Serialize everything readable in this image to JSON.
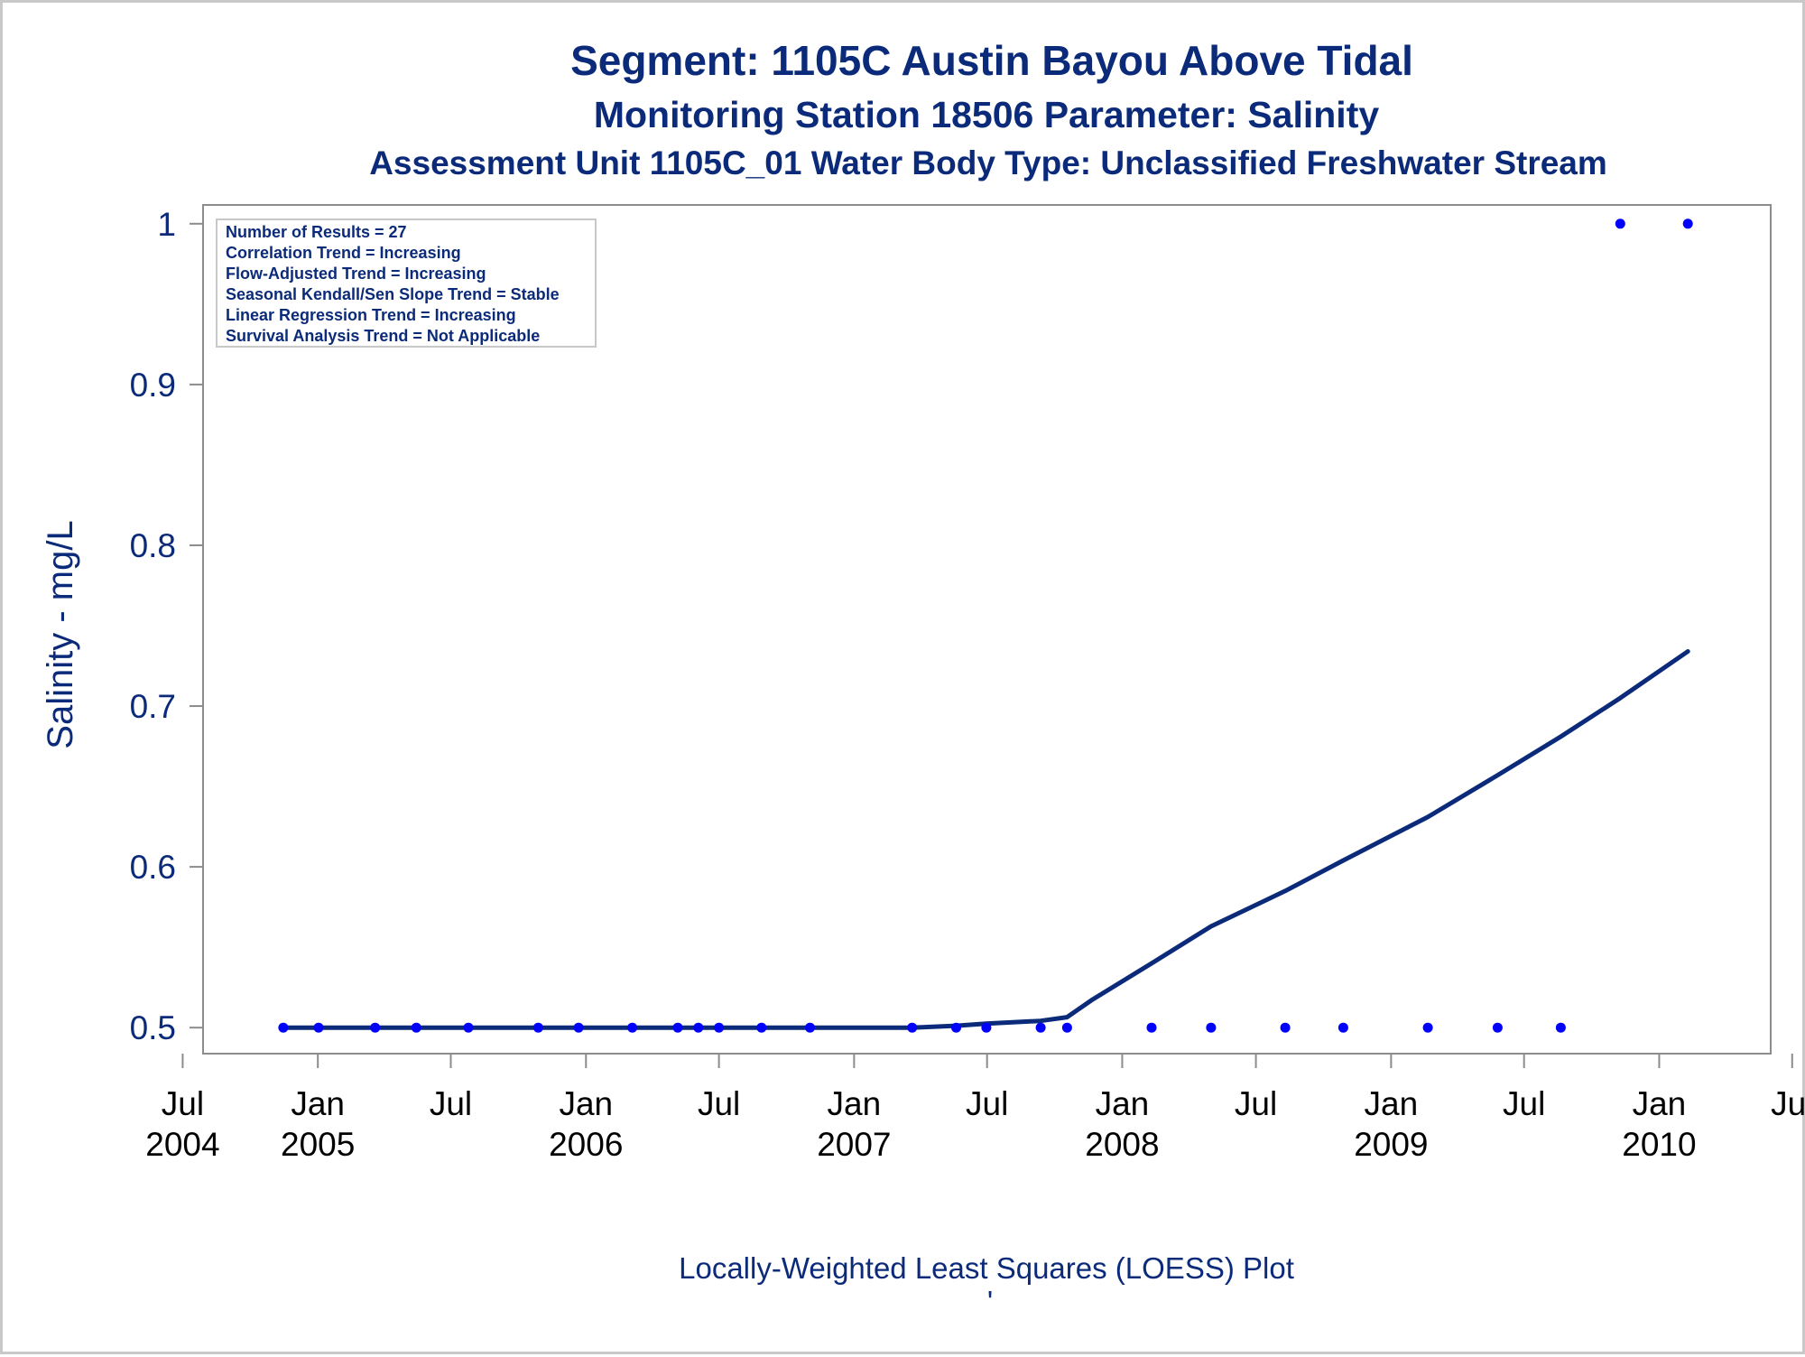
{
  "chart_data": {
    "type": "scatter",
    "title": "Segment: 1105C  Austin Bayou Above Tidal",
    "subtitle": "Monitoring Station 18506 Parameter: Salinity",
    "subtitle2": "Assessment Unit 1105C_01   Water Body Type: Unclassified Freshwater Stream",
    "xlabel": "Locally-Weighted Least Squares (LOESS) Plot",
    "ylabel": "Salinity - mg/L",
    "footnote_mark": "'",
    "xlim": [
      "2004-06-01",
      "2010-08-01"
    ],
    "ylim": [
      0.49,
      1.01
    ],
    "y_ticks": [
      {
        "value": 0.5,
        "label": "0.5"
      },
      {
        "value": 0.6,
        "label": "0.6"
      },
      {
        "value": 0.7,
        "label": "0.7"
      },
      {
        "value": 0.8,
        "label": "0.8"
      },
      {
        "value": 0.9,
        "label": "0.9"
      },
      {
        "value": 1.0,
        "label": "1"
      }
    ],
    "x_ticks": [
      {
        "date": "2004-07-01",
        "month": "Jul",
        "year": "2004"
      },
      {
        "date": "2005-01-01",
        "month": "Jan",
        "year": "2005"
      },
      {
        "date": "2005-07-01",
        "month": "Jul",
        "year": ""
      },
      {
        "date": "2006-01-01",
        "month": "Jan",
        "year": "2006"
      },
      {
        "date": "2006-07-01",
        "month": "Jul",
        "year": ""
      },
      {
        "date": "2007-01-01",
        "month": "Jan",
        "year": "2007"
      },
      {
        "date": "2007-07-01",
        "month": "Jul",
        "year": ""
      },
      {
        "date": "2008-01-01",
        "month": "Jan",
        "year": "2008"
      },
      {
        "date": "2008-07-01",
        "month": "Jul",
        "year": ""
      },
      {
        "date": "2009-01-01",
        "month": "Jan",
        "year": "2009"
      },
      {
        "date": "2009-07-01",
        "month": "Jul",
        "year": ""
      },
      {
        "date": "2010-01-01",
        "month": "Jan",
        "year": "2010"
      },
      {
        "date": "2010-07-01",
        "month": "Jul",
        "year": ""
      }
    ],
    "series": [
      {
        "type": "scatter",
        "points": [
          {
            "x": "2004-11-15",
            "y": 0.5
          },
          {
            "x": "2005-01-02",
            "y": 0.5
          },
          {
            "x": "2005-03-20",
            "y": 0.5
          },
          {
            "x": "2005-05-15",
            "y": 0.5
          },
          {
            "x": "2005-07-25",
            "y": 0.5
          },
          {
            "x": "2005-10-28",
            "y": 0.5
          },
          {
            "x": "2005-12-22",
            "y": 0.5
          },
          {
            "x": "2006-03-05",
            "y": 0.5
          },
          {
            "x": "2006-05-06",
            "y": 0.5
          },
          {
            "x": "2006-06-03",
            "y": 0.5
          },
          {
            "x": "2006-07-01",
            "y": 0.5
          },
          {
            "x": "2006-08-28",
            "y": 0.5
          },
          {
            "x": "2006-11-02",
            "y": 0.5
          },
          {
            "x": "2007-03-21",
            "y": 0.5
          },
          {
            "x": "2007-05-20",
            "y": 0.5
          },
          {
            "x": "2007-06-30",
            "y": 0.5
          },
          {
            "x": "2007-09-12",
            "y": 0.5
          },
          {
            "x": "2007-10-18",
            "y": 0.5
          },
          {
            "x": "2008-02-10",
            "y": 0.5
          },
          {
            "x": "2008-05-01",
            "y": 0.5
          },
          {
            "x": "2008-08-10",
            "y": 0.5
          },
          {
            "x": "2008-10-28",
            "y": 0.5
          },
          {
            "x": "2009-02-20",
            "y": 0.5
          },
          {
            "x": "2009-05-26",
            "y": 0.5
          },
          {
            "x": "2009-08-20",
            "y": 0.5
          },
          {
            "x": "2009-11-09",
            "y": 1.0
          },
          {
            "x": "2010-02-09",
            "y": 1.0
          }
        ],
        "color": "#0000ff"
      },
      {
        "type": "line",
        "points": [
          {
            "x": "2004-11-15",
            "y": 0.5
          },
          {
            "x": "2007-03-21",
            "y": 0.5
          },
          {
            "x": "2007-05-20",
            "y": 0.5012
          },
          {
            "x": "2007-06-30",
            "y": 0.5025
          },
          {
            "x": "2007-09-12",
            "y": 0.5042
          },
          {
            "x": "2007-10-18",
            "y": 0.5065
          },
          {
            "x": "2007-11-20",
            "y": 0.517
          },
          {
            "x": "2008-02-10",
            "y": 0.54
          },
          {
            "x": "2008-05-01",
            "y": 0.563
          },
          {
            "x": "2008-08-10",
            "y": 0.585
          },
          {
            "x": "2008-10-28",
            "y": 0.604
          },
          {
            "x": "2009-02-20",
            "y": 0.631
          },
          {
            "x": "2009-05-26",
            "y": 0.657
          },
          {
            "x": "2009-08-20",
            "y": 0.681
          },
          {
            "x": "2009-11-09",
            "y": 0.705
          },
          {
            "x": "2010-02-09",
            "y": 0.734
          }
        ],
        "color": "#0b2b7a"
      }
    ],
    "stats": [
      "Number of Results = 27",
      "Correlation Trend = Increasing",
      "Flow-Adjusted Trend = Increasing",
      "Seasonal Kendall/Sen Slope Trend = Stable",
      "Linear Regression Trend = Increasing",
      "Survival Analysis Trend = Not Applicable"
    ],
    "grid": false,
    "legend": "top-left"
  }
}
